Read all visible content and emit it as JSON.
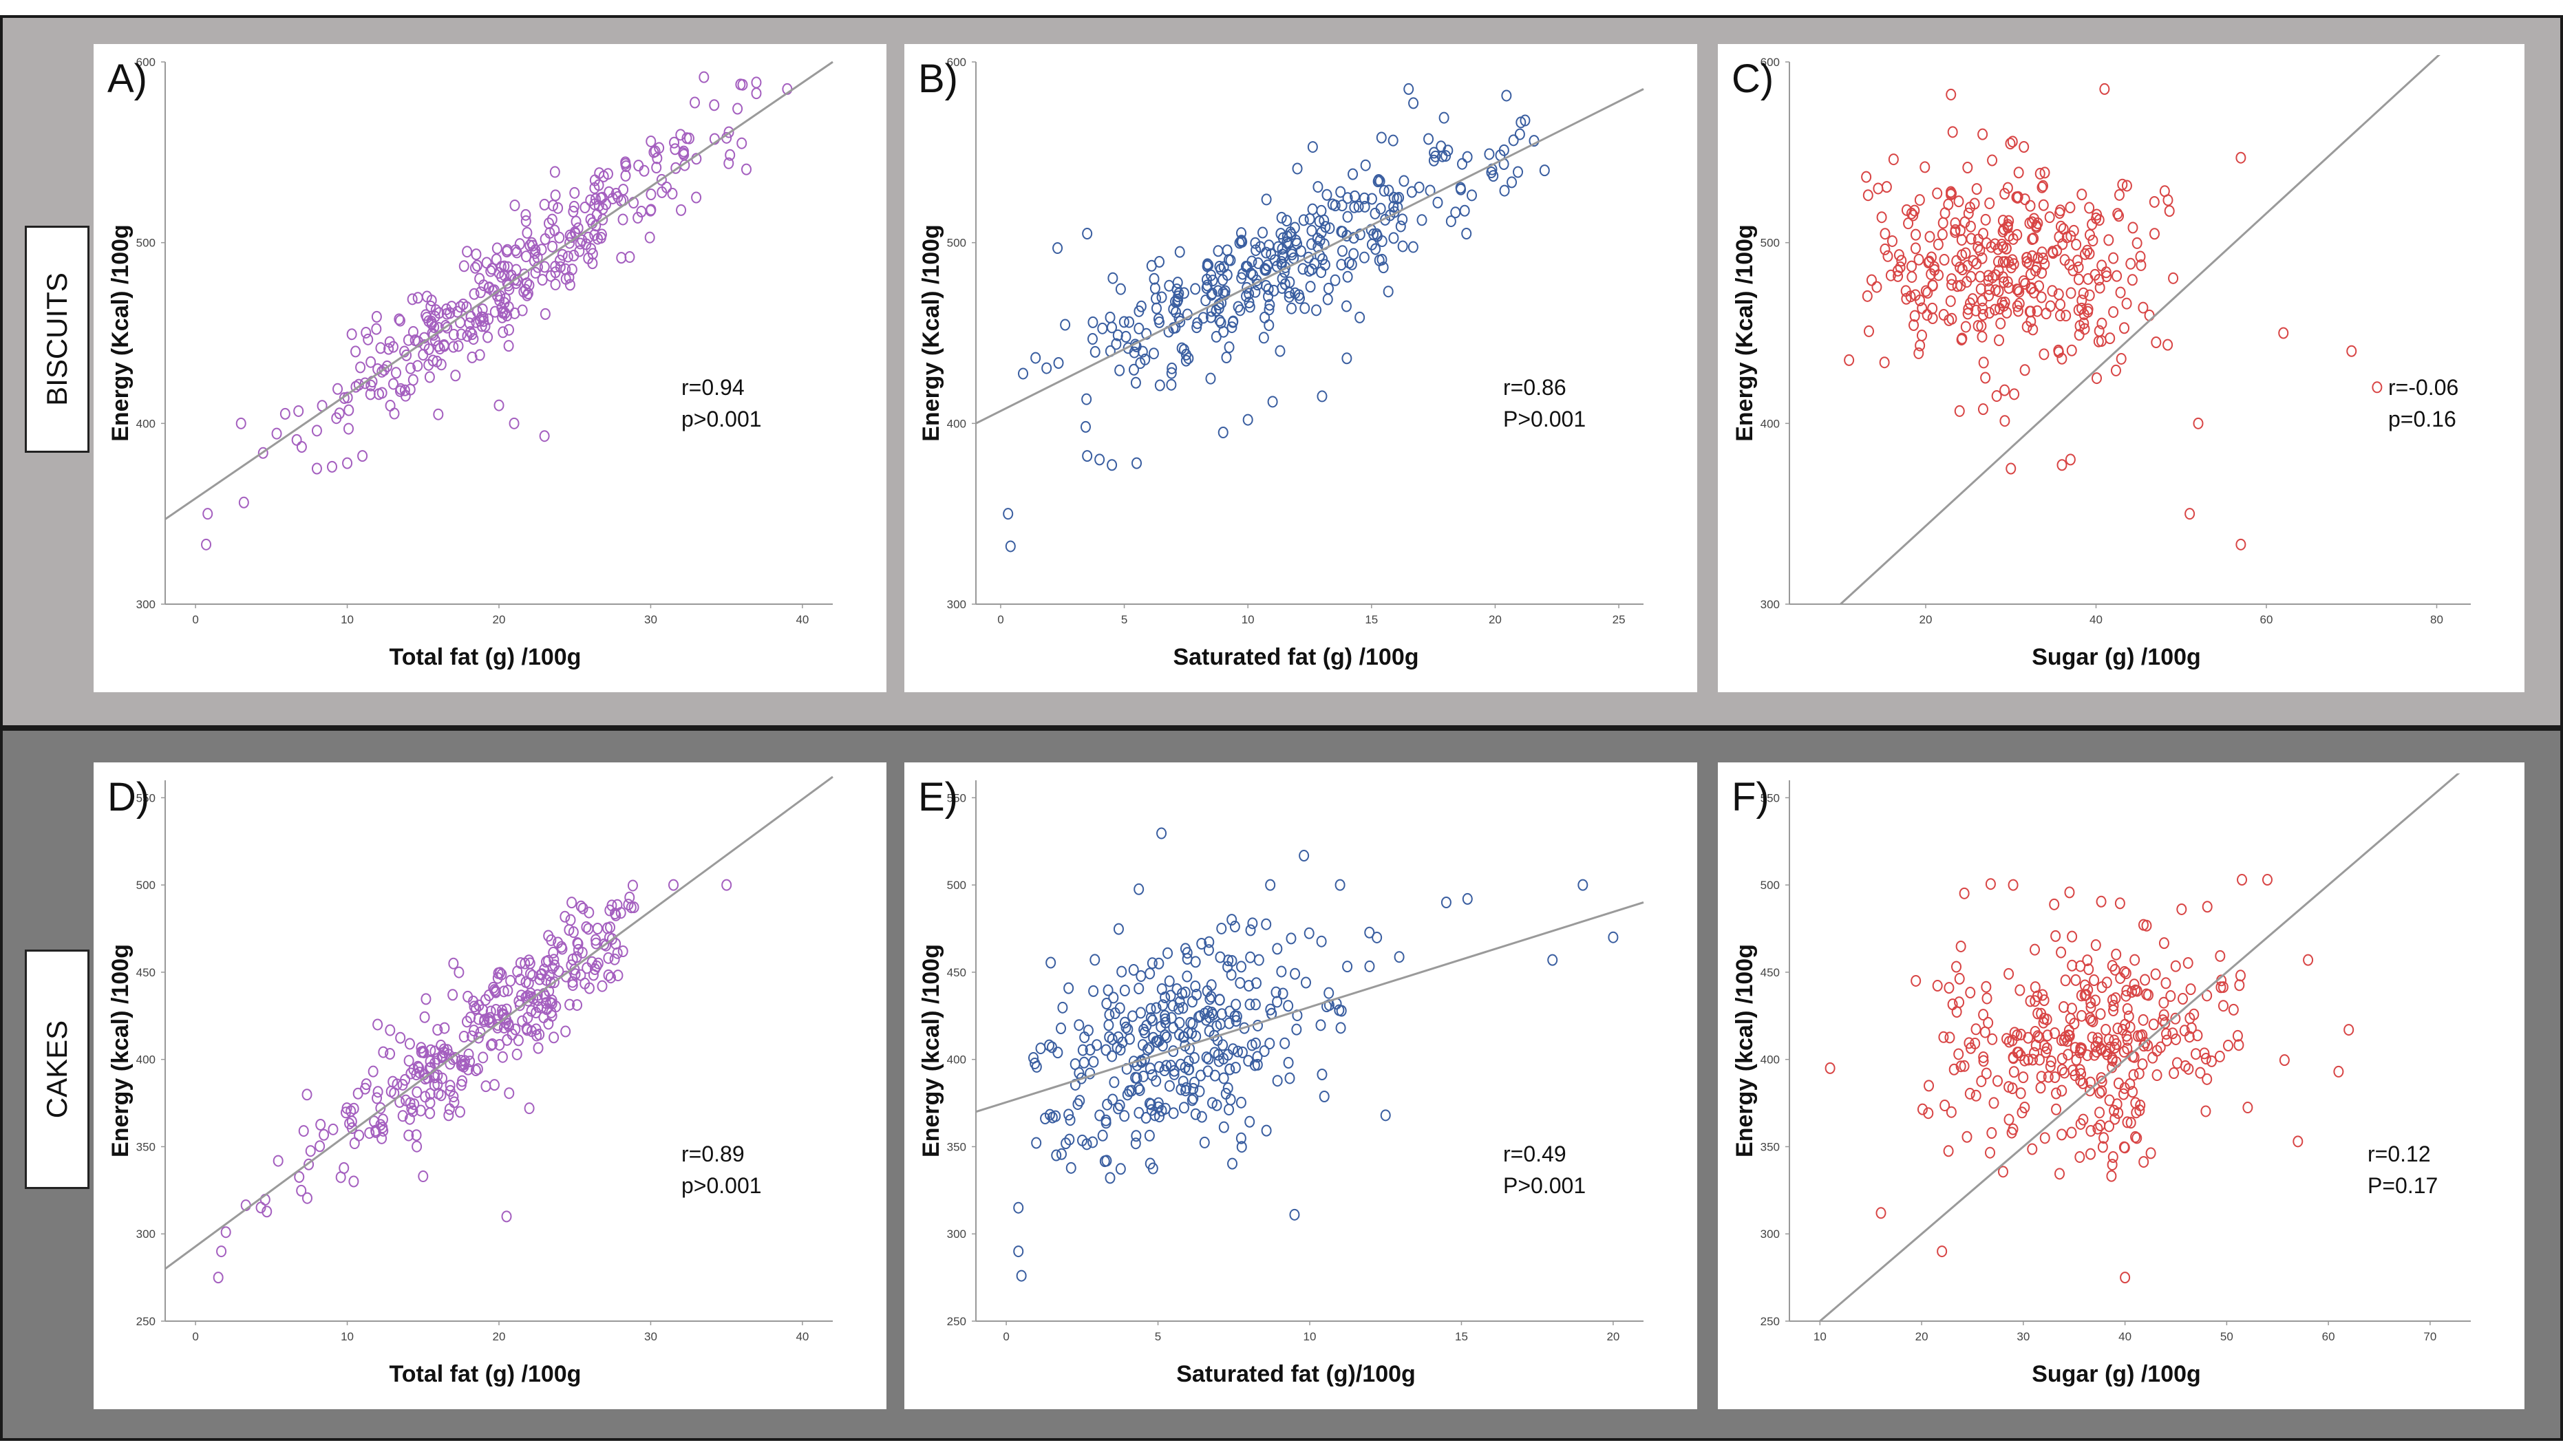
{
  "rows": [
    {
      "label": "BISCUITS"
    },
    {
      "label": "CAKES"
    }
  ],
  "chart_data": [
    {
      "id": "A",
      "panel_label": "A)",
      "type": "scatter",
      "xlabel": "Total fat (g) /100g",
      "ylabel": "Energy (Kcal) /100g",
      "x_ticks": [
        0,
        10,
        20,
        30,
        40
      ],
      "y_ticks": [
        300,
        400,
        500,
        600
      ],
      "xlim": [
        -2,
        42
      ],
      "ylim": [
        300,
        600
      ],
      "stats": [
        "r=0.94",
        "p>0.001"
      ],
      "fit": {
        "x": [
          -2,
          42
        ],
        "y": [
          347,
          600
        ]
      },
      "point_color": "#a45fbf",
      "cloud": {
        "n": 330,
        "x_min": 3,
        "x_max": 37,
        "x_mean": 21,
        "x_sd": 7,
        "slope": 5.8,
        "intercept": 358,
        "noise": 14,
        "seed": 11
      },
      "outliers": [
        [
          0.8,
          350
        ],
        [
          0.7,
          333
        ],
        [
          3,
          400
        ],
        [
          39,
          585
        ],
        [
          36,
          555
        ],
        [
          35,
          558
        ],
        [
          21,
          400
        ],
        [
          20,
          410
        ],
        [
          23,
          393
        ],
        [
          8,
          375
        ],
        [
          9,
          376
        ],
        [
          11,
          382
        ],
        [
          10,
          378
        ],
        [
          7,
          387
        ],
        [
          8,
          396
        ],
        [
          16,
          405
        ],
        [
          32,
          518
        ],
        [
          33,
          525
        ],
        [
          15,
          438
        ],
        [
          12,
          430
        ]
      ]
    },
    {
      "id": "B",
      "panel_label": "B)",
      "type": "scatter",
      "xlabel": "Saturated fat (g) /100g",
      "ylabel": "Energy (Kcal) /100g",
      "x_ticks": [
        0,
        5,
        10,
        15,
        20,
        25
      ],
      "y_ticks": [
        300,
        400,
        500,
        600
      ],
      "xlim": [
        -1,
        26
      ],
      "ylim": [
        300,
        600
      ],
      "stats": [
        "r=0.86",
        "P>0.001"
      ],
      "fit": {
        "x": [
          -1,
          26
        ],
        "y": [
          400,
          585
        ]
      },
      "point_color": "#3a5ea0",
      "cloud": {
        "n": 330,
        "x_min": 0.8,
        "x_max": 22,
        "x_mean": 11,
        "x_sd": 4.5,
        "slope": 6.5,
        "intercept": 413,
        "noise": 17,
        "seed": 23
      },
      "outliers": [
        [
          0.3,
          350
        ],
        [
          0.4,
          332
        ],
        [
          16.5,
          585
        ],
        [
          3.5,
          505
        ],
        [
          2.3,
          497
        ],
        [
          5.5,
          378
        ],
        [
          4.5,
          377
        ],
        [
          3.5,
          382
        ],
        [
          9,
          395
        ],
        [
          10,
          402
        ],
        [
          12,
          541
        ],
        [
          18,
          548
        ],
        [
          21,
          560
        ],
        [
          22,
          540
        ],
        [
          4,
          380
        ],
        [
          13,
          415
        ],
        [
          11,
          412
        ],
        [
          14,
          436
        ]
      ]
    },
    {
      "id": "C",
      "panel_label": "C)",
      "type": "scatter",
      "xlabel": "Sugar (g) /100g",
      "ylabel": "Energy (Kcal) /100g",
      "x_ticks": [
        20,
        40,
        60,
        80
      ],
      "y_ticks": [
        300,
        400,
        500,
        600
      ],
      "xlim": [
        4,
        84
      ],
      "ylim": [
        300,
        600
      ],
      "stats": [
        "r=-0.06",
        "p=0.16"
      ],
      "fit": {
        "x": [
          10,
          84
        ],
        "y": [
          300,
          620
        ]
      },
      "point_color": "#d84545",
      "cloud": {
        "n": 340,
        "x_min": 13,
        "x_max": 50,
        "x_mean": 30,
        "x_sd": 9,
        "slope": -0.3,
        "intercept": 497,
        "noise": 30,
        "seed": 37
      },
      "outliers": [
        [
          11,
          435
        ],
        [
          57,
          547
        ],
        [
          57,
          333
        ],
        [
          51,
          350
        ],
        [
          62,
          450
        ],
        [
          52,
          400
        ],
        [
          41,
          585
        ],
        [
          70,
          440
        ],
        [
          73,
          420
        ],
        [
          36,
          377
        ],
        [
          37,
          380
        ],
        [
          30,
          375
        ]
      ]
    },
    {
      "id": "D",
      "panel_label": "D)",
      "type": "scatter",
      "xlabel": "Total fat (g) /100g",
      "ylabel": "Energy (kcal) /100g",
      "x_ticks": [
        0,
        10,
        20,
        30,
        40
      ],
      "y_ticks": [
        250,
        300,
        350,
        400,
        450,
        500,
        550
      ],
      "xlim": [
        -2,
        42
      ],
      "ylim": [
        250,
        560
      ],
      "stats": [
        "r=0.89",
        "p>0.001"
      ],
      "fit": {
        "x": [
          -2,
          42
        ],
        "y": [
          280,
          562
        ]
      },
      "point_color": "#a45fbf",
      "cloud": {
        "n": 330,
        "x_min": 3,
        "x_max": 29,
        "x_mean": 19,
        "x_sd": 6,
        "slope": 6.4,
        "intercept": 292,
        "noise": 16,
        "seed": 51
      },
      "outliers": [
        [
          1.5,
          275
        ],
        [
          1.7,
          290
        ],
        [
          2,
          301
        ],
        [
          31.5,
          500
        ],
        [
          35,
          500
        ],
        [
          20.5,
          310
        ],
        [
          22,
          372
        ],
        [
          15,
          333
        ],
        [
          17,
          455
        ],
        [
          26.5,
          475
        ],
        [
          12,
          420
        ]
      ]
    },
    {
      "id": "E",
      "panel_label": "E)",
      "type": "scatter",
      "xlabel": "Saturated fat (g)/100g",
      "ylabel": "Energy (kcal) /100g",
      "x_ticks": [
        0,
        5,
        10,
        15,
        20
      ],
      "y_ticks": [
        250,
        300,
        350,
        400,
        450,
        500,
        550
      ],
      "xlim": [
        -1,
        21
      ],
      "ylim": [
        250,
        560
      ],
      "stats": [
        "r=0.49",
        "P>0.001"
      ],
      "fit": {
        "x": [
          -1,
          21
        ],
        "y": [
          370,
          490
        ]
      },
      "point_color": "#3a5ea0",
      "cloud": {
        "n": 330,
        "x_min": 0.8,
        "x_max": 13,
        "x_mean": 5.5,
        "x_sd": 2.8,
        "slope": 5.5,
        "intercept": 378,
        "noise": 30,
        "seed": 67
      },
      "outliers": [
        [
          0.4,
          290
        ],
        [
          0.5,
          276
        ],
        [
          0.4,
          315
        ],
        [
          19,
          500
        ],
        [
          20,
          470
        ],
        [
          18,
          457
        ],
        [
          9.5,
          311
        ],
        [
          15.2,
          492
        ],
        [
          14.5,
          490
        ],
        [
          12.5,
          368
        ],
        [
          8.7,
          500
        ],
        [
          11,
          500
        ]
      ]
    },
    {
      "id": "F",
      "panel_label": "F)",
      "type": "scatter",
      "xlabel": "Sugar (g) /100g",
      "ylabel": "Energy (kcal) /100g",
      "x_ticks": [
        10,
        20,
        30,
        40,
        50,
        60,
        70
      ],
      "y_ticks": [
        250,
        300,
        350,
        400,
        450,
        500,
        550
      ],
      "xlim": [
        7,
        74
      ],
      "ylim": [
        250,
        560
      ],
      "stats": [
        "r=0.12",
        "P=0.17"
      ],
      "fit": {
        "x": [
          10,
          74
        ],
        "y": [
          250,
          570
        ]
      },
      "point_color": "#d84545",
      "cloud": {
        "n": 330,
        "x_min": 19,
        "x_max": 57,
        "x_mean": 36,
        "x_sd": 7.5,
        "slope": 0.55,
        "intercept": 388,
        "noise": 32,
        "seed": 79
      },
      "outliers": [
        [
          11,
          395
        ],
        [
          16,
          312
        ],
        [
          22,
          290
        ],
        [
          58,
          457
        ],
        [
          62,
          417
        ],
        [
          61,
          393
        ],
        [
          57,
          353
        ],
        [
          54,
          503
        ],
        [
          51.5,
          503
        ],
        [
          40,
          275
        ],
        [
          29,
          500
        ]
      ]
    }
  ]
}
